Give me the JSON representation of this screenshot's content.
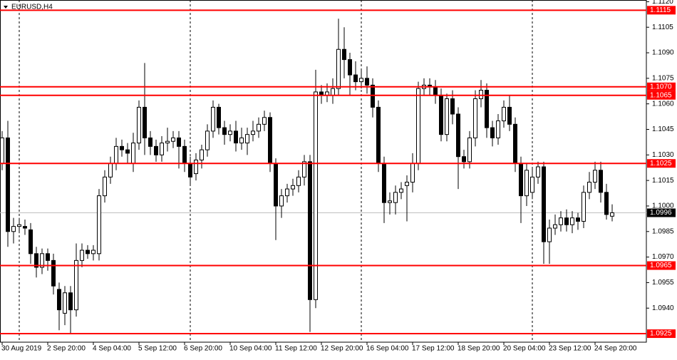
{
  "chart_data": {
    "type": "candlestick",
    "title": "EURUSD,H4",
    "categories": [
      "30 Aug 2019",
      null,
      null,
      null,
      null,
      null,
      null,
      null,
      "2 Sep 20:00",
      null,
      null,
      null,
      null,
      null,
      null,
      null,
      "4 Sep 04:00",
      null,
      null,
      null,
      null,
      null,
      null,
      null,
      "5 Sep 12:00",
      null,
      null,
      null,
      null,
      null,
      null,
      null,
      "6 Sep 20:00",
      null,
      null,
      null,
      null,
      null,
      null,
      null,
      "10 Sep 04:00",
      null,
      null,
      null,
      null,
      null,
      null,
      null,
      "11 Sep 12:00",
      null,
      null,
      null,
      null,
      null,
      null,
      null,
      "12 Sep 20:00",
      null,
      null,
      null,
      null,
      null,
      null,
      null,
      "16 Sep 04:00",
      null,
      null,
      null,
      null,
      null,
      null,
      null,
      "17 Sep 12:00",
      null,
      null,
      null,
      null,
      null,
      null,
      null,
      "18 Sep 20:00",
      null,
      null,
      null,
      null,
      null,
      null,
      null,
      "20 Sep 04:00",
      null,
      null,
      null,
      null,
      null,
      null,
      null,
      "23 Sep 12:00",
      null,
      null,
      null,
      null,
      null,
      null,
      null,
      "24 Sep 20:00",
      null,
      null,
      null
    ],
    "open": [
      1.1025,
      1.104,
      1.0985,
      1.0988,
      1.0988,
      1.0986,
      1.0972,
      1.0964,
      1.0972,
      1.0968,
      1.0951,
      1.0937,
      1.0949,
      1.0939,
      1.0968,
      1.0974,
      1.0972,
      1.0972,
      1.1006,
      1.1017,
      1.1025,
      1.1035,
      1.1033,
      1.1025,
      1.1037,
      1.1058,
      1.104,
      1.1035,
      1.103,
      1.1037,
      1.1038,
      1.104,
      1.1035,
      1.1025,
      1.1019,
      1.1027,
      1.1033,
      1.1044,
      1.1058,
      1.1046,
      1.1042,
      1.1044,
      1.1037,
      1.1037,
      1.1042,
      1.1044,
      1.1048,
      1.1052,
      1.1025,
      1.1,
      1.1006,
      1.101,
      1.1012,
      1.1017,
      1.1026,
      1.0945,
      1.1067,
      1.1065,
      1.1065,
      1.1069,
      1.1092,
      1.1086,
      1.1077,
      1.1073,
      1.1075,
      1.1071,
      1.1058,
      1.1025,
      1.1002,
      1.1002,
      1.1008,
      1.1012,
      1.1014,
      1.1025,
      1.1069,
      1.1071,
      1.107,
      1.1065,
      1.1042,
      1.1063,
      1.1054,
      1.1029,
      1.1026,
      1.104,
      1.1063,
      1.1068,
      1.1046,
      1.104,
      1.105,
      1.1058,
      1.1048,
      1.1025,
      1.1006,
      1.1008,
      1.1017,
      1.1023,
      1.0979,
      1.0987,
      1.0989,
      1.0993,
      1.0989,
      1.0993,
      1.0991,
      1.1008,
      1.1014,
      1.1021,
      1.1008,
      1.0994
    ],
    "high": [
      1.1044,
      1.105,
      1.0993,
      1.0993,
      1.0992,
      1.099,
      1.0976,
      1.0975,
      1.0975,
      1.0972,
      1.0955,
      1.0953,
      1.0953,
      1.0978,
      1.0978,
      1.0977,
      1.0977,
      1.101,
      1.1021,
      1.1029,
      1.104,
      1.1039,
      1.1037,
      1.1043,
      1.1062,
      1.1084,
      1.1044,
      1.1039,
      1.1041,
      1.1046,
      1.1044,
      1.1044,
      1.1039,
      1.1029,
      1.1031,
      1.1036,
      1.1048,
      1.1062,
      1.106,
      1.105,
      1.1048,
      1.105,
      1.1046,
      1.1046,
      1.105,
      1.1052,
      1.1056,
      1.1055,
      1.1028,
      1.101,
      1.1013,
      1.1016,
      1.1021,
      1.103,
      1.103,
      1.108,
      1.1071,
      1.1072,
      1.1075,
      1.111,
      1.1105,
      1.109,
      1.1085,
      1.108,
      1.1082,
      1.1075,
      1.1062,
      1.1029,
      1.1008,
      1.1012,
      1.1014,
      1.1018,
      1.1031,
      1.1073,
      1.1075,
      1.1075,
      1.1074,
      1.1069,
      1.1066,
      1.1068,
      1.1058,
      1.1033,
      1.1044,
      1.1068,
      1.1074,
      1.1072,
      1.105,
      1.1054,
      1.1062,
      1.1065,
      1.1052,
      1.1029,
      1.1025,
      1.1022,
      1.1026,
      1.1026,
      1.0992,
      1.0995,
      1.0997,
      1.0998,
      1.0997,
      1.0996,
      1.1012,
      1.102,
      1.1026,
      1.1026,
      1.1013,
      1.1001
    ],
    "low": [
      1.1021,
      1.0976,
      1.0978,
      1.0984,
      1.0983,
      1.0966,
      1.0958,
      1.096,
      1.0962,
      1.0948,
      1.0927,
      1.093,
      1.0925,
      1.0935,
      1.0964,
      1.0969,
      1.0968,
      1.0968,
      1.1002,
      1.1013,
      1.1021,
      1.1029,
      1.1025,
      1.102,
      1.1033,
      1.103,
      1.103,
      1.1026,
      1.1026,
      1.1032,
      1.1034,
      1.1022,
      1.102,
      1.1012,
      1.1015,
      1.1022,
      1.1029,
      1.104,
      1.1042,
      1.1036,
      1.1038,
      1.1032,
      1.1033,
      1.103,
      1.1038,
      1.104,
      1.1044,
      1.102,
      1.098,
      1.0993,
      1.1002,
      1.1006,
      1.1008,
      1.1012,
      1.0926,
      1.094,
      1.106,
      1.1061,
      1.106,
      1.1065,
      1.1075,
      1.1065,
      1.1068,
      1.1069,
      1.1066,
      1.1052,
      1.102,
      1.099,
      1.0995,
      1.0995,
      1.1004,
      1.0991,
      1.1008,
      1.1021,
      1.1065,
      1.1065,
      1.106,
      1.1038,
      1.1038,
      1.1048,
      1.101,
      1.1022,
      1.1022,
      1.1035,
      1.1058,
      1.104,
      1.1035,
      1.1036,
      1.1046,
      1.1044,
      1.102,
      1.099,
      1.1,
      1.1004,
      1.1013,
      1.0966,
      1.0966,
      1.0983,
      1.0985,
      1.0985,
      1.0984,
      1.0986,
      1.0987,
      1.1004,
      1.101,
      1.1002,
      1.0992,
      1.0991
    ],
    "close": [
      1.104,
      1.0985,
      1.0988,
      1.0989,
      1.0987,
      1.0972,
      1.0964,
      1.0972,
      1.0968,
      1.0953,
      1.0939,
      1.0949,
      1.0939,
      1.0968,
      1.0974,
      1.0972,
      1.0974,
      1.1006,
      1.1017,
      1.1025,
      1.1035,
      1.1033,
      1.1031,
      1.1037,
      1.1058,
      1.104,
      1.1035,
      1.103,
      1.1037,
      1.1038,
      1.104,
      1.1035,
      1.1025,
      1.1017,
      1.1027,
      1.1033,
      1.1044,
      1.1058,
      1.1046,
      1.1042,
      1.1044,
      1.1037,
      1.104,
      1.1042,
      1.1044,
      1.1048,
      1.1052,
      1.1025,
      1.1,
      1.1006,
      1.101,
      1.1012,
      1.1017,
      1.1026,
      1.0945,
      1.1067,
      1.1065,
      1.1067,
      1.1069,
      1.1092,
      1.1086,
      1.1077,
      1.1073,
      1.1075,
      1.1071,
      1.1058,
      1.1025,
      1.1002,
      1.1003,
      1.1008,
      1.101,
      1.1014,
      1.1025,
      1.1069,
      1.1071,
      1.107,
      1.1065,
      1.1042,
      1.1063,
      1.1054,
      1.1029,
      1.1026,
      1.104,
      1.1063,
      1.1068,
      1.1046,
      1.104,
      1.105,
      1.1058,
      1.1048,
      1.1025,
      1.1006,
      1.1021,
      1.1017,
      1.1023,
      1.0979,
      1.0987,
      1.0989,
      1.0993,
      1.0989,
      1.0993,
      1.0991,
      1.1008,
      1.1014,
      1.1021,
      1.1008,
      1.0995,
      1.0996
    ],
    "up_color": "#ffffff",
    "down_color": "#000000",
    "ylim": [
      1.092,
      1.1121
    ],
    "yticks": [
      {
        "value": 1.112,
        "label": "1.1120"
      },
      1.1105,
      {
        "value": 1.109,
        "label": "1.1090"
      },
      1.1075,
      {
        "value": 1.106,
        "label": "1.1060"
      },
      1.1045,
      {
        "value": 1.103,
        "label": "1.1030"
      },
      1.1015,
      {
        "value": 1.1,
        "label": "1.1000"
      },
      1.0985,
      {
        "value": 1.097,
        "label": "1.0970"
      },
      1.0955,
      {
        "value": 1.094,
        "label": "1.0940"
      }
    ],
    "levels": [
      1.1115,
      {
        "value": 1.107,
        "label": "1.1070"
      },
      1.1065,
      1.1025,
      1.0965,
      1.0925
    ],
    "level_color": "#ff0000",
    "current_price": 1.0996
  }
}
